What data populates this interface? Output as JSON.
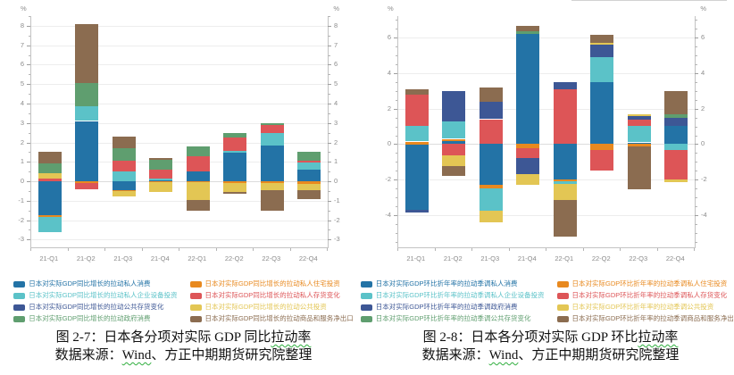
{
  "figures": [
    {
      "caption_prefix": "图 2-7：日本各分项对实际 GDP 同比",
      "caption_underline": "拉动率",
      "source_prefix": "数据来源：",
      "source_brand": "Wind",
      "source_suffix": "、方正中期期货研究院整理"
    },
    {
      "caption_prefix": "图 2-8：日本各分项对实际 GDP 环比",
      "caption_underline": "拉动率",
      "source_prefix": "数据来源：",
      "source_brand": "Wind",
      "source_suffix": "、方正中期期货研究院整理"
    }
  ],
  "chart_data": [
    {
      "type": "bar",
      "stacked": true,
      "unit": "%",
      "categories": [
        "21-Q1",
        "21-Q2",
        "21-Q3",
        "21-Q4",
        "22-Q1",
        "22-Q2",
        "22-Q3",
        "22-Q4"
      ],
      "ylim": [
        -3.4,
        8.5
      ],
      "ytick_labels": [
        -3,
        -2,
        -1,
        0,
        1,
        2,
        3,
        4,
        5,
        6,
        7,
        8
      ],
      "ytick_minor_step": 0.5,
      "grid": true,
      "legend_position": "bottom",
      "series": [
        {
          "name": "日本对实际GDP同比增长的拉动私人消费",
          "color": "#2373a6",
          "values": [
            -1.75,
            3.1,
            -0.45,
            0.05,
            0.5,
            1.45,
            1.85,
            0.6
          ]
        },
        {
          "name": "日本对实际GDP同比增长的拉动私人住宅投资",
          "color": "#e8891f",
          "values": [
            -0.1,
            -0.1,
            -0.05,
            -0.05,
            -0.05,
            -0.1,
            -0.1,
            -0.15
          ]
        },
        {
          "name": "日本对实际GDP同比增长的拉动私人企业设备投资",
          "color": "#5bc2c8",
          "values": [
            -0.75,
            0.75,
            0.5,
            0.1,
            0.0,
            0.1,
            0.65,
            0.35
          ]
        },
        {
          "name": "日本对实际GDP同比增长的拉动私人存货变化",
          "color": "#dd5557",
          "values": [
            0.15,
            -0.3,
            0.55,
            0.45,
            0.8,
            0.7,
            0.4,
            0.1
          ]
        },
        {
          "name": "日本对实际GDP同比增长的拉动公共存货变化",
          "color": "#3d5795",
          "values": [
            0,
            0,
            0,
            0,
            0,
            0,
            0,
            0
          ]
        },
        {
          "name": "日本对实际GDP同比增长的拉动公共投资",
          "color": "#e3c654",
          "values": [
            0.25,
            0.0,
            -0.3,
            -0.5,
            -0.9,
            -0.45,
            -0.35,
            -0.3
          ]
        },
        {
          "name": "日本对实际GDP同比增长的拉动政府消费",
          "color": "#5f9e6f",
          "values": [
            0.5,
            1.2,
            0.65,
            0.5,
            0.5,
            0.25,
            0.1,
            0.45
          ]
        },
        {
          "name": "日本对实际GDP同比增长的拉动商品和服务净出口",
          "color": "#8b6c50",
          "values": [
            0.6,
            3.05,
            0.6,
            0.1,
            -0.55,
            -0.1,
            -1.05,
            -0.45
          ]
        }
      ]
    },
    {
      "type": "bar",
      "stacked": true,
      "unit": "%",
      "categories": [
        "21-Q1",
        "21-Q2",
        "21-Q3",
        "21-Q4",
        "22-Q1",
        "22-Q2",
        "22-Q3",
        "22-Q4"
      ],
      "ylim": [
        -5.8,
        7.2
      ],
      "ytick_labels": [
        -4,
        -2,
        0,
        2,
        4,
        6
      ],
      "ytick_minor_step": 0.5,
      "grid": true,
      "legend_position": "bottom",
      "series": [
        {
          "name": "日本对实际GDP环比折年率的拉动季调私人消费",
          "color": "#2373a6",
          "values": [
            -3.7,
            0.2,
            -2.3,
            6.2,
            -2.0,
            3.5,
            0.1,
            1.05
          ]
        },
        {
          "name": "日本对实际GDP环比折年率的拉动季调私人住宅投资",
          "color": "#e8891f",
          "values": [
            0.15,
            0.1,
            -0.2,
            -0.25,
            -0.1,
            -0.35,
            -0.15,
            0.0
          ]
        },
        {
          "name": "日本对实际GDP环比折年率的拉动季调私人企业设备投资",
          "color": "#5bc2c8",
          "values": [
            0.9,
            1.0,
            -1.25,
            0.0,
            -0.15,
            1.4,
            0.95,
            -0.35
          ]
        },
        {
          "name": "日本对实际GDP环比折年率的拉动季调私人存货变化",
          "color": "#dd5557",
          "values": [
            1.75,
            -0.65,
            1.4,
            -0.55,
            3.1,
            -1.15,
            0.35,
            -1.65
          ]
        },
        {
          "name": "日本对实际GDP环比折年率的拉动季调政府消费",
          "color": "#3d5795",
          "values": [
            -0.15,
            1.7,
            1.0,
            -0.9,
            0.4,
            0.7,
            0.2,
            0.45
          ]
        },
        {
          "name": "日本对实际GDP环比折年率的拉动季调公共投资",
          "color": "#e3c654",
          "values": [
            0.0,
            -0.6,
            -0.65,
            -0.6,
            -0.9,
            0.1,
            0.1,
            -0.15
          ]
        },
        {
          "name": "日本对实际GDP环比折年率的拉动季调公共存货变化",
          "color": "#5f9e6f",
          "values": [
            0,
            0,
            0,
            0.15,
            0,
            0,
            0,
            0.2
          ]
        },
        {
          "name": "日本对实际GDP环比折年率的拉动季调商品和服务净出口",
          "color": "#8b6c50",
          "values": [
            0.3,
            -0.55,
            0.8,
            0.3,
            -2.05,
            0.45,
            -2.4,
            1.3
          ]
        }
      ]
    }
  ]
}
